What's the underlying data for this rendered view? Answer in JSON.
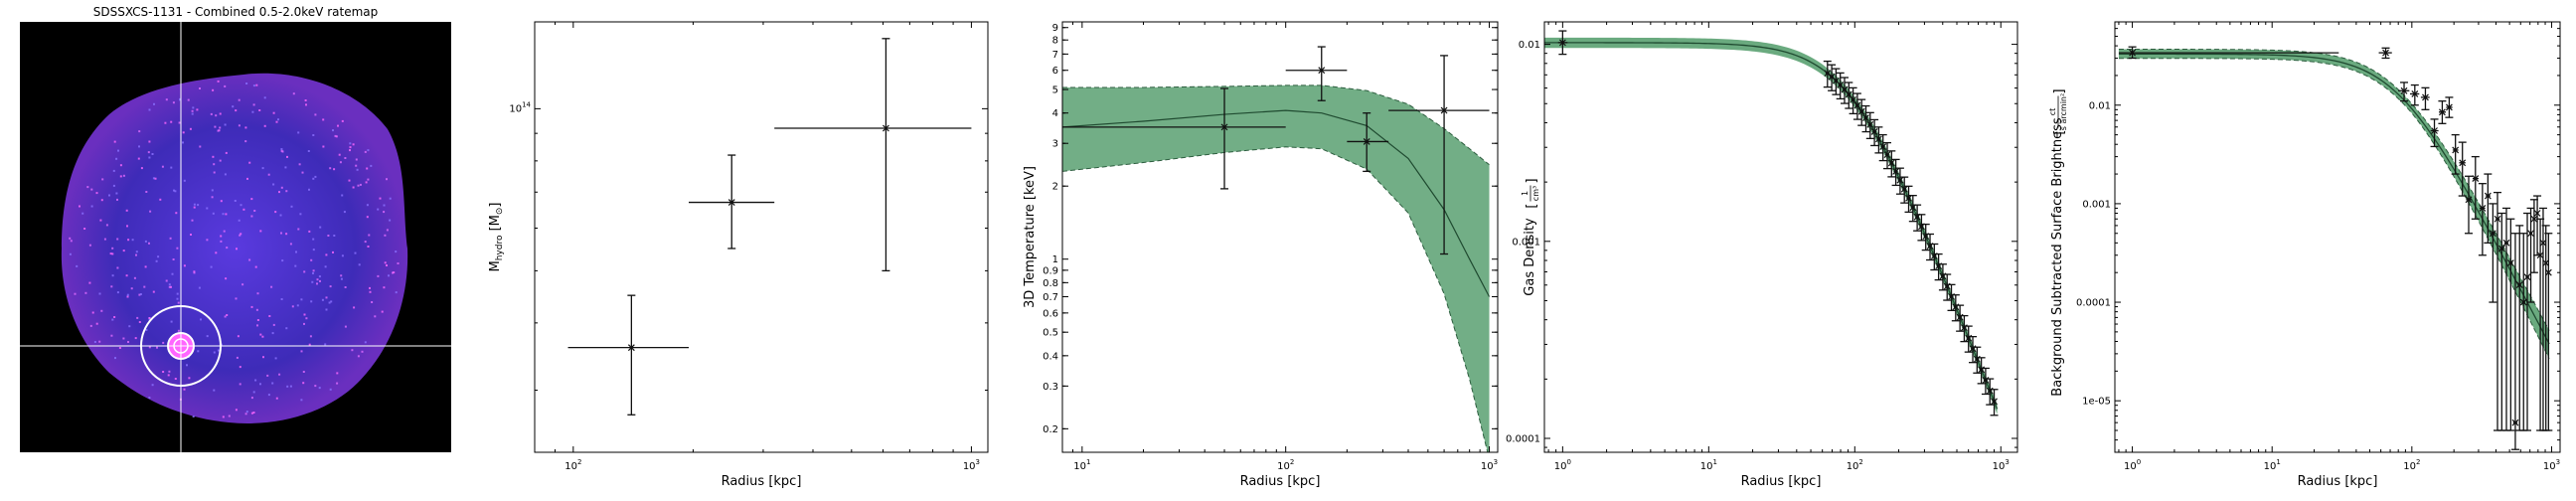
{
  "chart_data": [
    {
      "type": "image",
      "title": "SDSSXCS-1131 - Combined 0.5-2.0keV ratemap"
    },
    {
      "type": "scatter",
      "xlabel": "Radius [kpc]",
      "ylabel": "M_hydro [M_⊙]",
      "xscale": "log",
      "yscale": "log",
      "xlim": [
        80,
        1100
      ],
      "ylim": [
        23000000000000.0,
        145000000000000.0
      ],
      "x_ticks": [
        {
          "v": 100,
          "b": "10",
          "e": "2"
        },
        {
          "v": 1000,
          "b": "10",
          "e": "3"
        }
      ],
      "y_ticks": [
        {
          "v": 100000000000000.0,
          "b": "10",
          "e": "14"
        }
      ],
      "points": [
        {
          "x": 140,
          "y": 36000000000000.0,
          "xlo": 97,
          "xhi": 195,
          "ylo": 27000000000000.0,
          "yhi": 45000000000000.0
        },
        {
          "x": 250,
          "y": 67000000000000.0,
          "xlo": 195,
          "xhi": 320,
          "ylo": 55000000000000.0,
          "yhi": 82000000000000.0
        },
        {
          "x": 610,
          "y": 92000000000000.0,
          "xlo": 320,
          "xhi": 1000,
          "ylo": 50000000000000.0,
          "yhi": 135000000000000.0
        }
      ]
    },
    {
      "type": "line",
      "xlabel": "Radius [kpc]",
      "ylabel": "3D Temperature [keV]",
      "xscale": "log",
      "yscale": "log",
      "xlim": [
        8,
        1100
      ],
      "ylim": [
        0.16,
        9.5
      ],
      "x_ticks": [
        {
          "v": 10,
          "b": "10",
          "e": "1"
        },
        {
          "v": 100,
          "b": "10",
          "e": "2"
        },
        {
          "v": 1000,
          "b": "10",
          "e": "3"
        }
      ],
      "y_ticks": [
        {
          "v": 0.2,
          "t": "0.2"
        },
        {
          "v": 0.3,
          "t": "0.3"
        },
        {
          "v": 0.4,
          "t": "0.4"
        },
        {
          "v": 0.5,
          "t": "0.5"
        },
        {
          "v": 0.6,
          "t": "0.6"
        },
        {
          "v": 0.7,
          "t": "0.7"
        },
        {
          "v": 0.8,
          "t": "0.8"
        },
        {
          "v": 0.9,
          "t": "0.9"
        },
        {
          "v": 1,
          "t": "1"
        },
        {
          "v": 2,
          "t": "2"
        },
        {
          "v": 3,
          "t": "3"
        },
        {
          "v": 4,
          "t": "4"
        },
        {
          "v": 5,
          "t": "5"
        },
        {
          "v": 6,
          "t": "6"
        },
        {
          "v": 7,
          "t": "7"
        },
        {
          "v": 8,
          "t": "8"
        },
        {
          "v": 9,
          "t": "9"
        }
      ],
      "model": {
        "x": [
          8,
          20,
          50,
          100,
          150,
          250,
          400,
          600,
          800,
          1000
        ],
        "median": [
          3.5,
          3.7,
          3.95,
          4.1,
          4.0,
          3.55,
          2.6,
          1.6,
          1.0,
          0.7
        ],
        "lower": [
          2.3,
          2.5,
          2.75,
          2.9,
          2.85,
          2.35,
          1.55,
          0.72,
          0.32,
          0.15
        ],
        "upper": [
          5.1,
          5.1,
          5.15,
          5.2,
          5.2,
          4.95,
          4.35,
          3.45,
          2.85,
          2.45
        ]
      },
      "points": [
        {
          "x": 50,
          "y": 3.5,
          "xlo": 8,
          "xhi": 100,
          "ylo": 1.95,
          "yhi": 5.05
        },
        {
          "x": 150,
          "y": 6.0,
          "xlo": 100,
          "xhi": 200,
          "ylo": 4.5,
          "yhi": 7.5
        },
        {
          "x": 250,
          "y": 3.05,
          "xlo": 200,
          "xhi": 320,
          "ylo": 2.3,
          "yhi": 4.0
        },
        {
          "x": 600,
          "y": 4.1,
          "xlo": 320,
          "xhi": 1000,
          "ylo": 1.05,
          "yhi": 6.9
        }
      ]
    },
    {
      "type": "line",
      "xlabel": "Radius [kpc]",
      "ylabel": "Gas Density",
      "yunit": [
        "1",
        "cm³"
      ],
      "xscale": "log",
      "yscale": "log",
      "xlim": [
        0.75,
        1300
      ],
      "ylim": [
        8.5e-05,
        0.013
      ],
      "x_ticks": [
        {
          "v": 1,
          "b": "10",
          "e": "0"
        },
        {
          "v": 10,
          "b": "10",
          "e": "1"
        },
        {
          "v": 100,
          "b": "10",
          "e": "2"
        },
        {
          "v": 1000,
          "b": "10",
          "e": "3"
        }
      ],
      "y_ticks": [
        {
          "v": 0.01,
          "t": "0.01"
        },
        {
          "v": 0.001,
          "t": "0.001"
        },
        {
          "v": 0.0001,
          "t": "0.0001"
        }
      ],
      "model_params": {
        "n0": 0.0102,
        "rc": 95,
        "beta": 0.62,
        "width": 0.06
      },
      "point_range": {
        "xmin": 65,
        "xmax": 900,
        "count": 40
      },
      "first_point": {
        "x": 1.0,
        "y": 0.0102,
        "xlo": 0.93,
        "xhi": 1.08,
        "ylo": 0.0089,
        "yhi": 0.0117
      }
    },
    {
      "type": "line",
      "xlabel": "Radius [kpc]",
      "ylabel": "Background Subtracted Surface Brightness",
      "yunit": [
        "ct",
        "s arcmin²"
      ],
      "xscale": "log",
      "yscale": "log",
      "xlim": [
        0.75,
        1150
      ],
      "ylim": [
        3e-06,
        0.07
      ],
      "x_ticks": [
        {
          "v": 1,
          "b": "10",
          "e": "0"
        },
        {
          "v": 10,
          "b": "10",
          "e": "1"
        },
        {
          "v": 100,
          "b": "10",
          "e": "2"
        },
        {
          "v": 1000,
          "b": "10",
          "e": "3"
        }
      ],
      "y_ticks": [
        {
          "v": 0.01,
          "t": "0.01"
        },
        {
          "v": 0.001,
          "t": "0.001"
        },
        {
          "v": 0.0001,
          "t": "0.0001"
        },
        {
          "v": 1e-05,
          "t": "1e-05"
        }
      ],
      "model_params": {
        "s0": 0.033,
        "rc": 80,
        "beta": 0.62
      },
      "points": [
        {
          "x": 1.0,
          "y": 0.034,
          "xlo": 0.8,
          "xhi": 30,
          "ylo": 0.03,
          "yhi": 0.039
        },
        {
          "x": 65,
          "y": 0.034,
          "xlo": 58,
          "xhi": 72,
          "ylo": 0.03,
          "yhi": 0.038
        },
        {
          "x": 88,
          "y": 0.014,
          "xlo": 80,
          "xhi": 96,
          "ylo": 0.011,
          "yhi": 0.017
        },
        {
          "x": 105,
          "y": 0.013,
          "xlo": 97,
          "xhi": 113,
          "ylo": 0.01,
          "yhi": 0.016
        },
        {
          "x": 125,
          "y": 0.012,
          "xlo": 116,
          "xhi": 134,
          "ylo": 0.009,
          "yhi": 0.015
        },
        {
          "x": 145,
          "y": 0.0055,
          "xlo": 136,
          "xhi": 155,
          "ylo": 0.0038,
          "yhi": 0.0072
        },
        {
          "x": 165,
          "y": 0.0085,
          "xlo": 156,
          "xhi": 175,
          "ylo": 0.0065,
          "yhi": 0.011
        },
        {
          "x": 185,
          "y": 0.0095,
          "xlo": 176,
          "xhi": 195,
          "ylo": 0.0075,
          "yhi": 0.012
        },
        {
          "x": 205,
          "y": 0.0035,
          "xlo": 196,
          "xhi": 215,
          "ylo": 0.002,
          "yhi": 0.005
        },
        {
          "x": 230,
          "y": 0.0026,
          "xlo": 218,
          "xhi": 242,
          "ylo": 0.0012,
          "yhi": 0.0042
        },
        {
          "x": 255,
          "y": 0.0011,
          "xlo": 244,
          "xhi": 268,
          "ylo": 0.0005,
          "yhi": 0.0019
        },
        {
          "x": 285,
          "y": 0.0018,
          "xlo": 272,
          "xhi": 300,
          "ylo": 0.0007,
          "yhi": 0.003
        },
        {
          "x": 320,
          "y": 0.0009,
          "xlo": 305,
          "xhi": 335,
          "ylo": 0.0003,
          "yhi": 0.0016
        },
        {
          "x": 350,
          "y": 0.0012,
          "xlo": 338,
          "xhi": 365,
          "ylo": 0.0004,
          "yhi": 0.002
        },
        {
          "x": 380,
          "y": 0.0005,
          "xlo": 368,
          "xhi": 395,
          "ylo": 0.0001,
          "yhi": 0.001
        },
        {
          "x": 410,
          "y": 0.0007,
          "xlo": 398,
          "xhi": 425,
          "ylo": 5e-06,
          "yhi": 0.0013
        },
        {
          "x": 440,
          "y": 0.00035,
          "xlo": 428,
          "xhi": 455,
          "ylo": 5e-06,
          "yhi": 0.0008
        },
        {
          "x": 475,
          "y": 0.0004,
          "xlo": 460,
          "xhi": 490,
          "ylo": 5e-06,
          "yhi": 0.0009
        },
        {
          "x": 510,
          "y": 0.00025,
          "xlo": 495,
          "xhi": 525,
          "ylo": 5e-06,
          "yhi": 0.0007
        },
        {
          "x": 550,
          "y": 6e-06,
          "xlo": 530,
          "xhi": 570,
          "ylo": 3.2e-06,
          "yhi": 0.0005
        },
        {
          "x": 590,
          "y": 0.00015,
          "xlo": 575,
          "xhi": 605,
          "ylo": 5e-06,
          "yhi": 0.0006
        },
        {
          "x": 630,
          "y": 0.0001,
          "xlo": 612,
          "xhi": 648,
          "ylo": 5e-06,
          "yhi": 0.0005
        },
        {
          "x": 670,
          "y": 0.00018,
          "xlo": 652,
          "xhi": 690,
          "ylo": 5e-06,
          "yhi": 0.0008
        },
        {
          "x": 710,
          "y": 0.0005,
          "xlo": 692,
          "xhi": 728,
          "ylo": 0.0001,
          "yhi": 0.0009
        },
        {
          "x": 750,
          "y": 0.0007,
          "xlo": 732,
          "xhi": 770,
          "ylo": 0.0002,
          "yhi": 0.0011
        },
        {
          "x": 790,
          "y": 0.0008,
          "xlo": 772,
          "xhi": 808,
          "ylo": 0.0003,
          "yhi": 0.0012
        },
        {
          "x": 830,
          "y": 0.0003,
          "xlo": 812,
          "xhi": 848,
          "ylo": 5e-06,
          "yhi": 0.0007
        },
        {
          "x": 870,
          "y": 0.0004,
          "xlo": 852,
          "xhi": 888,
          "ylo": 5e-06,
          "yhi": 0.0009
        },
        {
          "x": 910,
          "y": 0.00025,
          "xlo": 892,
          "xhi": 928,
          "ylo": 5e-06,
          "yhi": 0.0006
        },
        {
          "x": 950,
          "y": 0.0002,
          "xlo": 932,
          "xhi": 968,
          "ylo": 5e-06,
          "yhi": 0.0005
        }
      ]
    }
  ],
  "colors": {
    "band_fill": "#6aaa7f",
    "band_edge": "#2d5e3f",
    "model_line": "#1f4a30",
    "points": "#111111",
    "image_bg": "#000000",
    "crosshair": "#ffffff"
  }
}
